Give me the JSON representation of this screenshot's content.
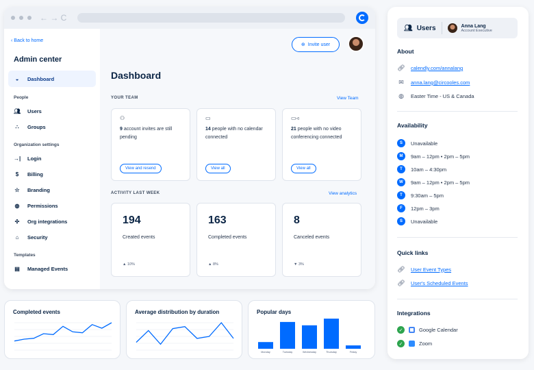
{
  "browser": {
    "nav": "← → C"
  },
  "sidebar": {
    "back_label": "Back to home",
    "title": "Admin center",
    "dashboard": "Dashboard",
    "section_people": "People",
    "users": "Users",
    "groups": "Groups",
    "section_org": "Organization settings",
    "login": "Login",
    "billing": "Billing",
    "branding": "Branding",
    "permissions": "Permissions",
    "org_integrations": "Org integrations",
    "security": "Security",
    "section_templates": "Templates",
    "managed_events": "Managed Events"
  },
  "header": {
    "invite_label": "Invite user"
  },
  "dashboard": {
    "title": "Dashboard",
    "team_label": "YOUR TEAM",
    "view_team": "View Team",
    "team_cards": [
      {
        "count": "9",
        "text": " account invites are still pending",
        "action": "View and resend"
      },
      {
        "count": "14",
        "text": " people with no calendar connected",
        "action": "View all"
      },
      {
        "count": "21",
        "text": " people with no video conferencing connected",
        "action": "View all"
      }
    ],
    "activity_label": "ACTIVITY LAST WEEK",
    "view_analytics": "View analytics",
    "stats": [
      {
        "value": "194",
        "label": "Created events",
        "trend": "▲ 10%"
      },
      {
        "value": "163",
        "label": "Completed events",
        "trend": "▲ 8%"
      },
      {
        "value": "8",
        "label": "Canceled events",
        "trend": "▼ 3%"
      }
    ]
  },
  "mini_charts": {
    "completed_title": "Completed events",
    "distribution_title": "Average distribution by duration",
    "popular_title": "Popular days"
  },
  "chart_data": [
    {
      "type": "line",
      "title": "Completed events",
      "values": [
        10,
        12,
        13,
        18,
        17,
        26,
        20,
        19,
        28,
        24,
        30
      ]
    },
    {
      "type": "line",
      "title": "Average distribution by duration",
      "values": [
        8,
        20,
        6,
        22,
        24,
        12,
        14,
        28,
        12
      ]
    },
    {
      "type": "bar",
      "title": "Popular days",
      "categories": [
        "Monday",
        "Tuesday",
        "Wednesday",
        "Thursday",
        "Friday"
      ],
      "values": [
        20,
        80,
        70,
        90,
        10
      ]
    }
  ],
  "panel": {
    "users_label": "Users",
    "user_name": "Anna Lang",
    "user_role": "Account Executive",
    "about_title": "About",
    "website": "calendly.com/annalang",
    "email": "anna.lang@circooles.com",
    "timezone": "Easter Time - US & Canada",
    "availability_title": "Availability",
    "availability": [
      {
        "day": "S",
        "hours": "Unavailable"
      },
      {
        "day": "M",
        "hours": "9am – 12pm  •  2pm – 5pm"
      },
      {
        "day": "T",
        "hours": "10am – 4:30pm"
      },
      {
        "day": "W",
        "hours": "9am – 12pm  •  2pm – 5pm"
      },
      {
        "day": "T",
        "hours": "9:30am – 5pm"
      },
      {
        "day": "F",
        "hours": "12pm – 3pm"
      },
      {
        "day": "S",
        "hours": "Unavailable"
      }
    ],
    "quick_links_title": "Quick links",
    "quick_links": [
      "User Event Types",
      "User's Scheduled Events"
    ],
    "integrations_title": "Integrations",
    "integrations": [
      "Google Calendar",
      "Zoom"
    ]
  },
  "colors": {
    "accent": "#006bff",
    "success": "#2da44e"
  }
}
